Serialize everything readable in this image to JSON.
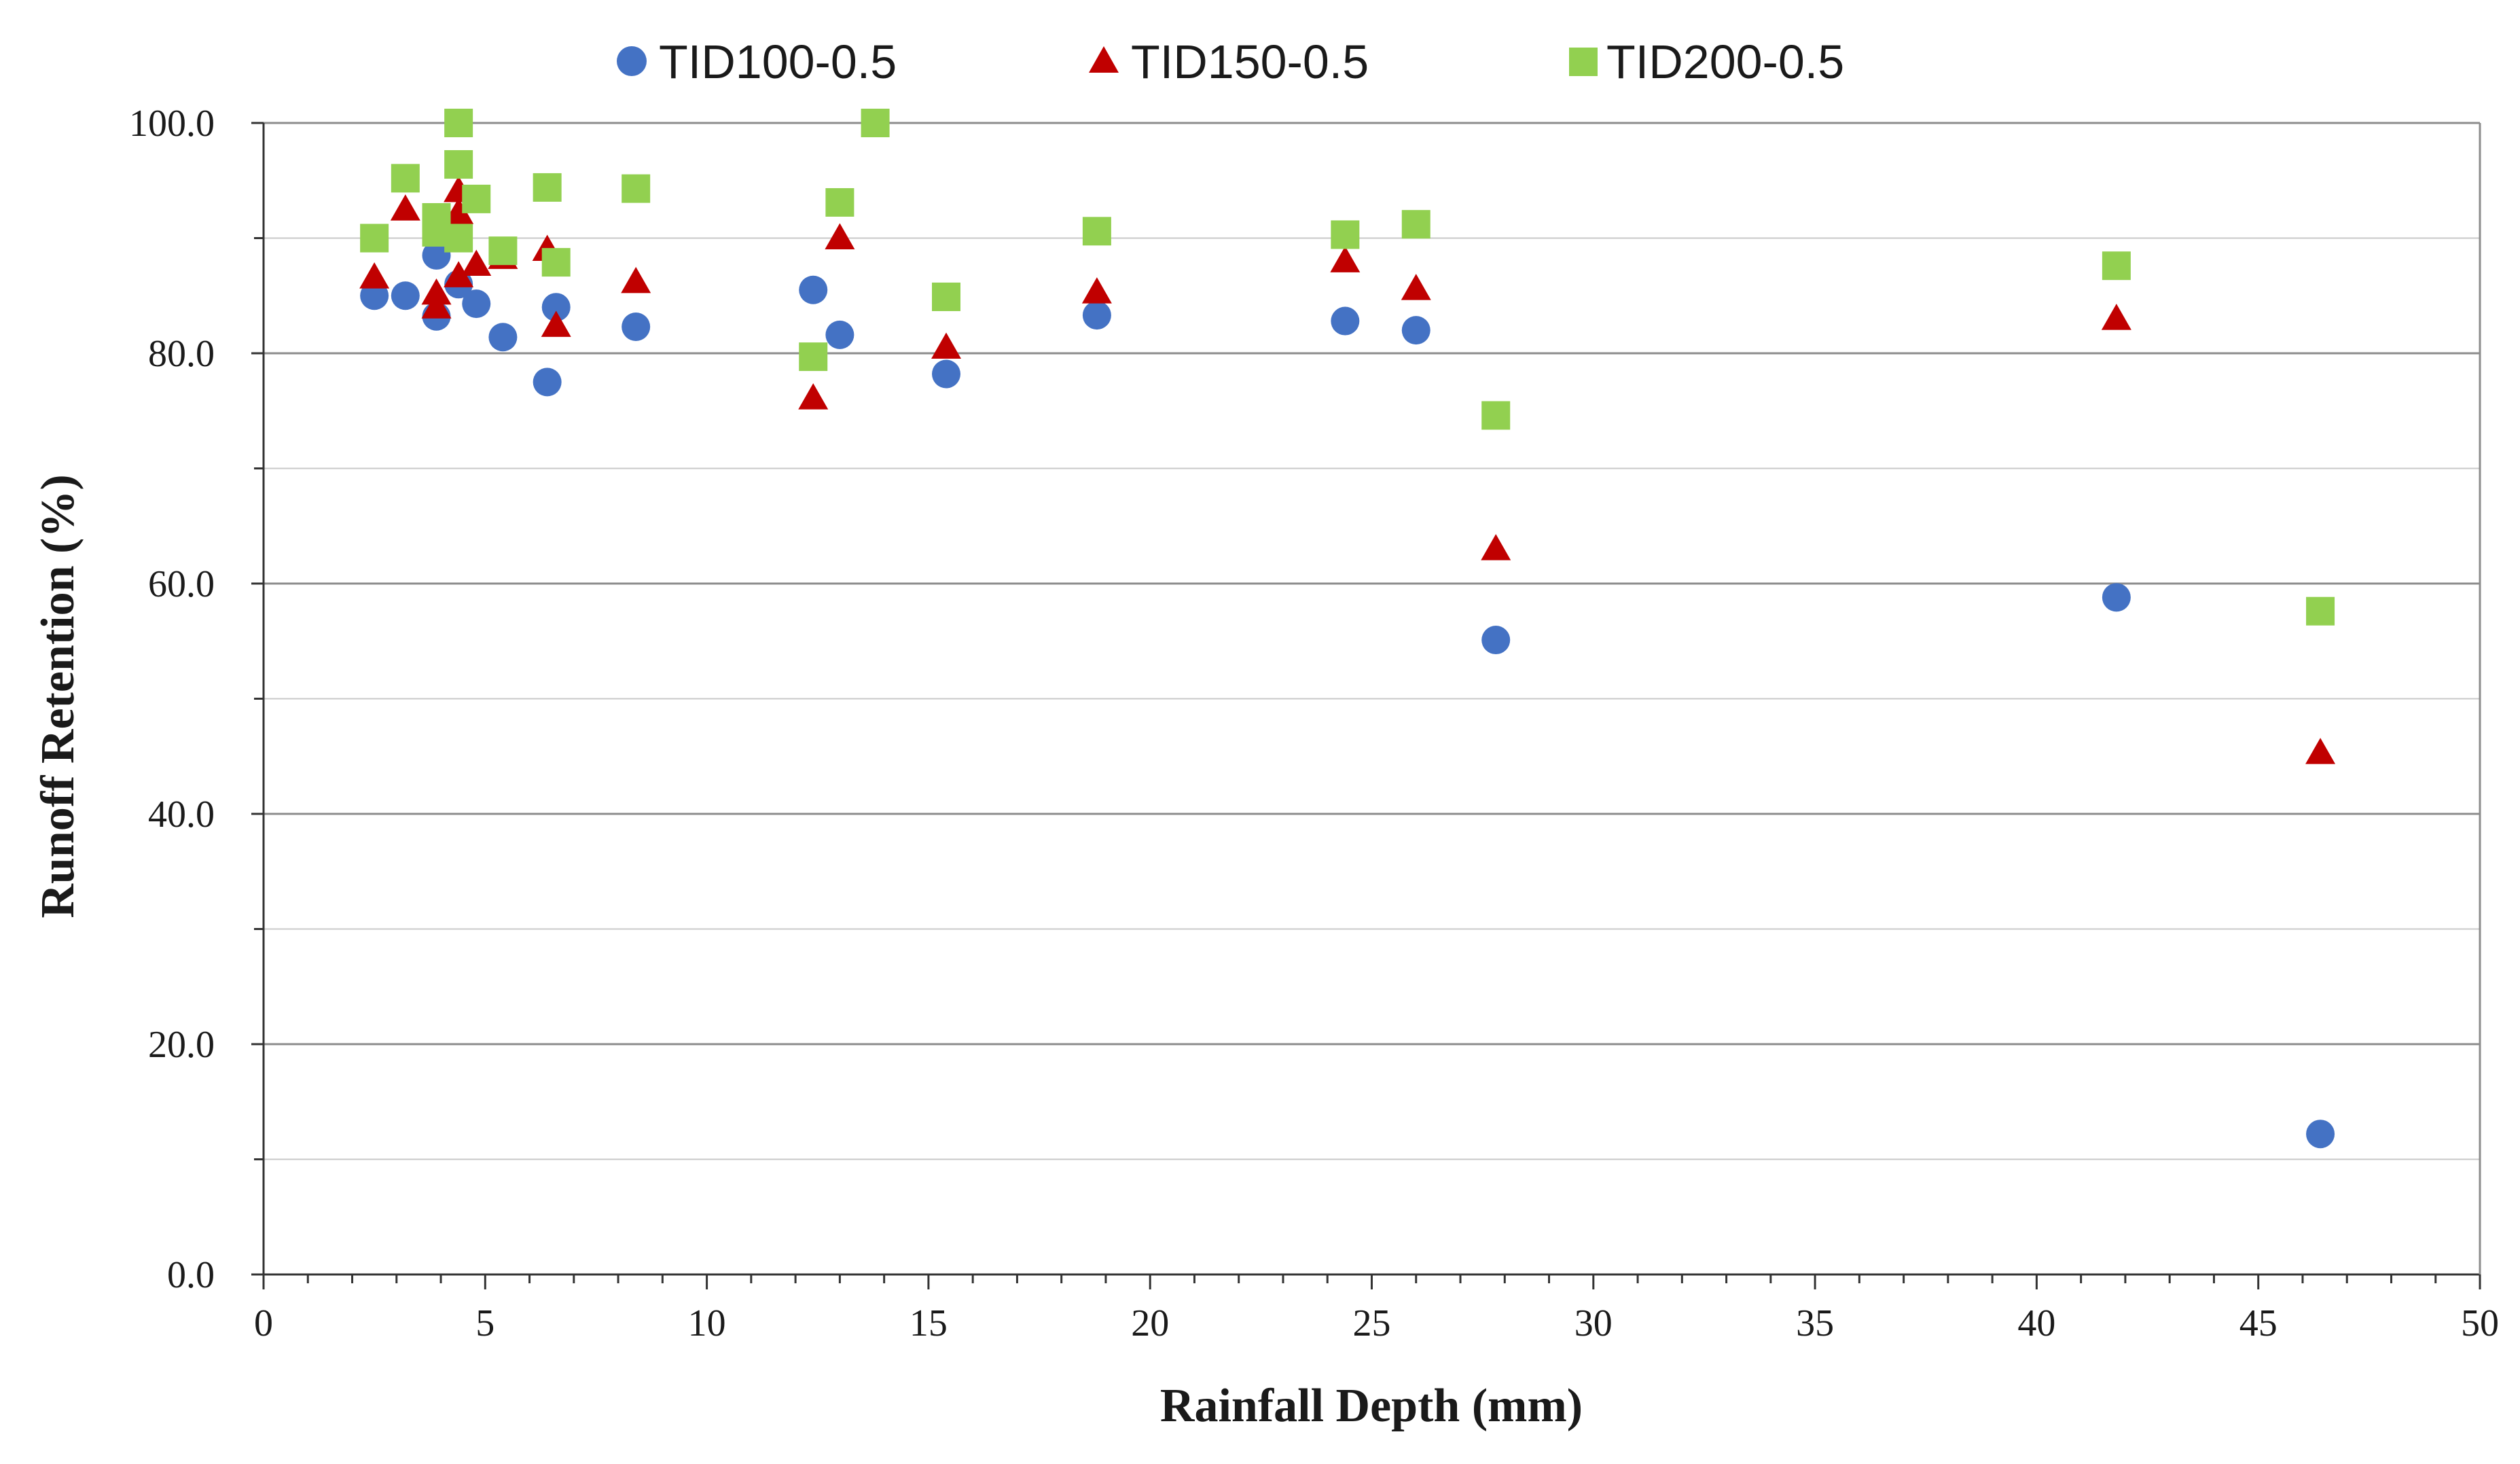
{
  "chart_data": {
    "type": "scatter",
    "title": "",
    "xlabel": "Rainfall Depth (mm)",
    "ylabel": "Runoff Retention (%)",
    "xlim": [
      0,
      50
    ],
    "ylim": [
      0,
      100
    ],
    "x_ticks": [
      0,
      5,
      10,
      15,
      20,
      25,
      30,
      35,
      40,
      45,
      50
    ],
    "x_tick_labels": [
      "0",
      "5",
      "10",
      "15",
      "20",
      "25",
      "30",
      "35",
      "40",
      "45",
      "50"
    ],
    "y_ticks": [
      0,
      20,
      40,
      60,
      80,
      100
    ],
    "y_tick_labels": [
      "0.0",
      "20.0",
      "40.0",
      "60.0",
      "80.0",
      "100.0"
    ],
    "grid": "horizontal",
    "legend_position": "top",
    "series": [
      {
        "name": "TID100-0.5",
        "marker": "circle",
        "color": "#4472C4",
        "points": [
          [
            2.5,
            85.0
          ],
          [
            3.2,
            85.0
          ],
          [
            3.9,
            83.2
          ],
          [
            3.9,
            88.5
          ],
          [
            4.4,
            86.0
          ],
          [
            4.8,
            84.3
          ],
          [
            5.4,
            81.4
          ],
          [
            6.4,
            77.5
          ],
          [
            6.6,
            84.0
          ],
          [
            8.4,
            82.3
          ],
          [
            12.4,
            85.5
          ],
          [
            13.0,
            81.6
          ],
          [
            15.4,
            78.2
          ],
          [
            18.8,
            83.3
          ],
          [
            24.4,
            82.8
          ],
          [
            26.0,
            82.0
          ],
          [
            27.8,
            55.1
          ],
          [
            41.8,
            58.8
          ],
          [
            46.4,
            12.2
          ]
        ]
      },
      {
        "name": "TID150-0.5",
        "marker": "triangle",
        "color": "#C00000",
        "points": [
          [
            2.5,
            86.6
          ],
          [
            3.2,
            92.5
          ],
          [
            3.9,
            84.0
          ],
          [
            3.9,
            85.2
          ],
          [
            4.4,
            86.7
          ],
          [
            4.4,
            92.2
          ],
          [
            4.4,
            94.1
          ],
          [
            4.8,
            87.7
          ],
          [
            5.4,
            88.3
          ],
          [
            6.4,
            89.0
          ],
          [
            6.6,
            82.4
          ],
          [
            8.4,
            86.2
          ],
          [
            12.4,
            76.1
          ],
          [
            13.0,
            90.0
          ],
          [
            15.4,
            80.5
          ],
          [
            18.8,
            85.3
          ],
          [
            24.4,
            88.0
          ],
          [
            26.0,
            85.6
          ],
          [
            27.8,
            63.0
          ],
          [
            41.8,
            83.0
          ],
          [
            46.4,
            45.3
          ]
        ]
      },
      {
        "name": "TID200-0.5",
        "marker": "square",
        "color": "#92D050",
        "points": [
          [
            2.5,
            90.0
          ],
          [
            3.2,
            95.2
          ],
          [
            3.9,
            90.5
          ],
          [
            3.9,
            91.8
          ],
          [
            4.4,
            90.0
          ],
          [
            4.4,
            96.4
          ],
          [
            4.4,
            100.0
          ],
          [
            4.8,
            93.4
          ],
          [
            5.4,
            88.9
          ],
          [
            6.4,
            94.4
          ],
          [
            6.6,
            87.9
          ],
          [
            8.4,
            94.3
          ],
          [
            12.4,
            79.7
          ],
          [
            13.0,
            93.1
          ],
          [
            13.8,
            100.0
          ],
          [
            15.4,
            84.9
          ],
          [
            18.8,
            90.6
          ],
          [
            24.4,
            90.3
          ],
          [
            26.0,
            91.2
          ],
          [
            27.8,
            74.6
          ],
          [
            41.8,
            87.6
          ],
          [
            46.4,
            57.6
          ]
        ]
      }
    ]
  }
}
